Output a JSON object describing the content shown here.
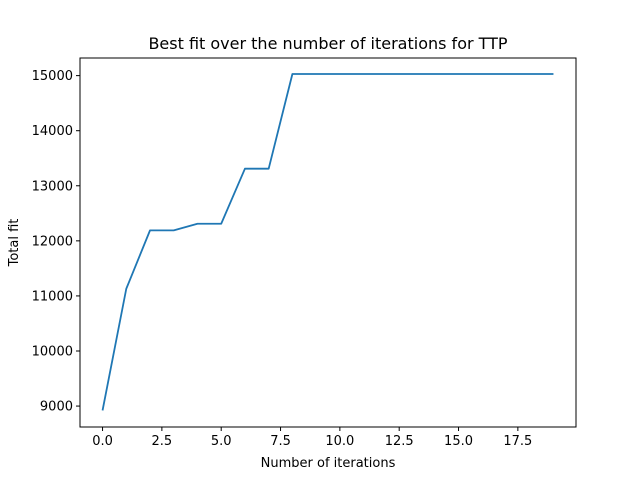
{
  "chart_data": {
    "type": "line",
    "title": "Best fit over the number of iterations for TTP",
    "xlabel": "Number of iterations",
    "ylabel": "Total fit",
    "xlim": [
      -0.95,
      19.95
    ],
    "ylim": [
      8620,
      15320
    ],
    "xticks": [
      0.0,
      2.5,
      5.0,
      7.5,
      10.0,
      12.5,
      15.0,
      17.5
    ],
    "xtick_labels": [
      "0.0",
      "2.5",
      "5.0",
      "7.5",
      "10.0",
      "12.5",
      "15.0",
      "17.5"
    ],
    "yticks": [
      9000,
      10000,
      11000,
      12000,
      13000,
      14000,
      15000
    ],
    "ytick_labels": [
      "9000",
      "10000",
      "11000",
      "12000",
      "13000",
      "14000",
      "15000"
    ],
    "grid": false,
    "legend": "none",
    "series": [
      {
        "color": "#1f77b4",
        "x": [
          0,
          1,
          2,
          3,
          4,
          5,
          6,
          7,
          8,
          9,
          10,
          11,
          12,
          13,
          14,
          15,
          16,
          17,
          18,
          19
        ],
        "y": [
          8920,
          11130,
          12190,
          12190,
          12310,
          12310,
          13310,
          13310,
          15030,
          15030,
          15030,
          15030,
          15030,
          15030,
          15030,
          15030,
          15030,
          15030,
          15030,
          15030
        ]
      }
    ]
  }
}
